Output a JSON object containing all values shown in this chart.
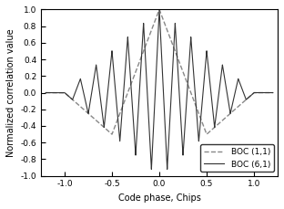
{
  "title": "",
  "xlabel": "Code phase, Chips",
  "ylabel": "Normalized correlation value",
  "xlim": [
    -1.25,
    1.25
  ],
  "ylim": [
    -1.0,
    1.0
  ],
  "xticks": [
    -1.0,
    -0.5,
    0.0,
    0.5,
    1.0
  ],
  "yticks": [
    -1.0,
    -0.8,
    -0.6,
    -0.4,
    -0.2,
    0.0,
    0.2,
    0.4,
    0.6,
    0.8,
    1.0
  ],
  "boc11_color": "#888888",
  "boc61_color": "#333333",
  "legend_labels": [
    "BOC (1,1)",
    "BOC (6,1)"
  ],
  "figsize": [
    3.12,
    2.29
  ],
  "dpi": 100
}
